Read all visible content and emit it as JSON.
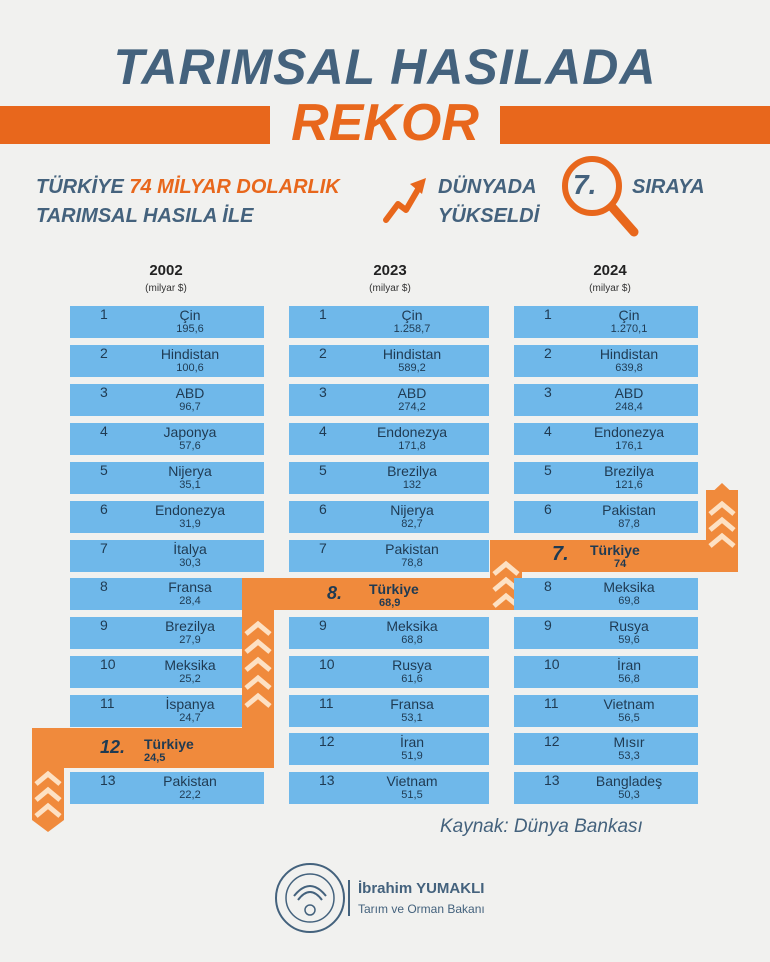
{
  "title_line1": "TARIMSAL HASILADA",
  "title_line2": "REKOR",
  "subtitle": {
    "part1": "TÜRKİYE",
    "highlight": "74 MİLYAR DOLARLIK",
    "part2": "TARIMSAL HASILA İLE",
    "world_line1": "DÜNYADA",
    "rank": "7.",
    "rank_word": "SIRAYA",
    "world_line2": "YÜKSELDİ"
  },
  "colors": {
    "blue": "#6fb8ea",
    "orange": "#e8671c",
    "navy": "#44627d"
  },
  "columns": [
    {
      "year": "2002",
      "unit": "(milyar $)",
      "rows": [
        {
          "rank": "1",
          "name": "Çin",
          "value": "195,6"
        },
        {
          "rank": "2",
          "name": "Hindistan",
          "value": "100,6"
        },
        {
          "rank": "3",
          "name": "ABD",
          "value": "96,7"
        },
        {
          "rank": "4",
          "name": "Japonya",
          "value": "57,6"
        },
        {
          "rank": "5",
          "name": "Nijerya",
          "value": "35,1"
        },
        {
          "rank": "6",
          "name": "Endonezya",
          "value": "31,9"
        },
        {
          "rank": "7",
          "name": "İtalya",
          "value": "30,3"
        },
        {
          "rank": "8",
          "name": "Fransa",
          "value": "28,4"
        },
        {
          "rank": "9",
          "name": "Brezilya",
          "value": "27,9"
        },
        {
          "rank": "10",
          "name": "Meksika",
          "value": "25,2"
        },
        {
          "rank": "11",
          "name": "İspanya",
          "value": "24,7"
        },
        {
          "rank": "12.",
          "name": "Türkiye",
          "value": "24,5"
        },
        {
          "rank": "13",
          "name": "Pakistan",
          "value": "22,2"
        }
      ]
    },
    {
      "year": "2023",
      "unit": "(milyar $)",
      "rows": [
        {
          "rank": "1",
          "name": "Çin",
          "value": "1.258,7"
        },
        {
          "rank": "2",
          "name": "Hindistan",
          "value": "589,2"
        },
        {
          "rank": "3",
          "name": "ABD",
          "value": "274,2"
        },
        {
          "rank": "4",
          "name": "Endonezya",
          "value": "171,8"
        },
        {
          "rank": "5",
          "name": "Brezilya",
          "value": "132"
        },
        {
          "rank": "6",
          "name": "Nijerya",
          "value": "82,7"
        },
        {
          "rank": "7",
          "name": "Pakistan",
          "value": "78,8"
        },
        {
          "rank": "8.",
          "name": "Türkiye",
          "value": "68,9"
        },
        {
          "rank": "9",
          "name": "Meksika",
          "value": "68,8"
        },
        {
          "rank": "10",
          "name": "Rusya",
          "value": "61,6"
        },
        {
          "rank": "11",
          "name": "Fransa",
          "value": "53,1"
        },
        {
          "rank": "12",
          "name": "İran",
          "value": "51,9"
        },
        {
          "rank": "13",
          "name": "Vietnam",
          "value": "51,5"
        }
      ]
    },
    {
      "year": "2024",
      "unit": "(milyar $)",
      "rows": [
        {
          "rank": "1",
          "name": "Çin",
          "value": "1.270,1"
        },
        {
          "rank": "2",
          "name": "Hindistan",
          "value": "639,8"
        },
        {
          "rank": "3",
          "name": "ABD",
          "value": "248,4"
        },
        {
          "rank": "4",
          "name": "Endonezya",
          "value": "176,1"
        },
        {
          "rank": "5",
          "name": "Brezilya",
          "value": "121,6"
        },
        {
          "rank": "6",
          "name": "Pakistan",
          "value": "87,8"
        },
        {
          "rank": "7.",
          "name": "Türkiye",
          "value": "74"
        },
        {
          "rank": "8",
          "name": "Meksika",
          "value": "69,8"
        },
        {
          "rank": "9",
          "name": "Rusya",
          "value": "59,6"
        },
        {
          "rank": "10",
          "name": "İran",
          "value": "56,8"
        },
        {
          "rank": "11",
          "name": "Vietnam",
          "value": "56,5"
        },
        {
          "rank": "12",
          "name": "Mısır",
          "value": "53,3"
        },
        {
          "rank": "13",
          "name": "Bangladeş",
          "value": "50,3"
        }
      ]
    }
  ],
  "source": "Kaynak: Dünya Bankası",
  "minister": {
    "name": "İbrahim YUMAKLI",
    "title": "Tarım ve Orman Bakanı"
  }
}
